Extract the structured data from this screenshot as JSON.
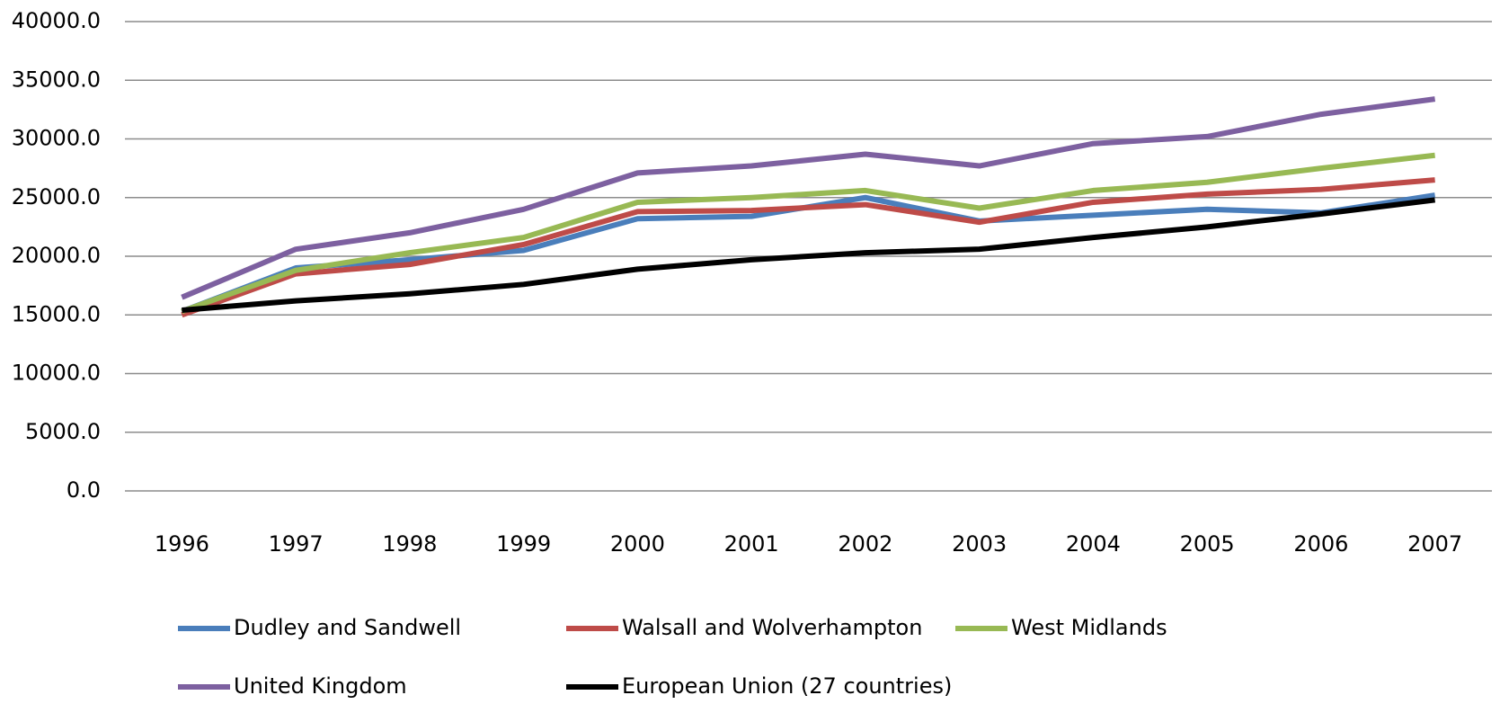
{
  "chart_data": {
    "type": "line",
    "categories": [
      "1996",
      "1997",
      "1998",
      "1999",
      "2000",
      "2001",
      "2002",
      "2003",
      "2004",
      "2005",
      "2006",
      "2007"
    ],
    "series": [
      {
        "name": "Dudley and Sandwell",
        "color": "#4a7ebb",
        "values": [
          15300,
          19000,
          19700,
          20500,
          23200,
          23400,
          25000,
          23000,
          23500,
          24000,
          23700,
          25200
        ]
      },
      {
        "name": "Walsall and Wolverhampton",
        "color": "#be4b48",
        "values": [
          15000,
          18500,
          19300,
          21000,
          23800,
          23900,
          24400,
          22900,
          24600,
          25300,
          25700,
          26500
        ]
      },
      {
        "name": "West Midlands",
        "color": "#98b954",
        "values": [
          15300,
          18800,
          20300,
          21600,
          24600,
          25000,
          25600,
          24100,
          25600,
          26300,
          27500,
          28600
        ]
      },
      {
        "name": "United Kingdom",
        "color": "#7d60a0",
        "values": [
          16500,
          20600,
          22000,
          24000,
          27100,
          27700,
          28700,
          27700,
          29600,
          30200,
          32100,
          33400
        ]
      },
      {
        "name": "European Union (27 countries)",
        "color": "#000000",
        "values": [
          15400,
          16200,
          16800,
          17600,
          18900,
          19700,
          20300,
          20600,
          21600,
          22500,
          23600,
          24800
        ]
      }
    ],
    "ylim": [
      0,
      40000
    ],
    "yticks": [
      {
        "value": 0,
        "label": "0.0"
      },
      {
        "value": 5000,
        "label": "5000.0"
      },
      {
        "value": 10000,
        "label": "10000.0"
      },
      {
        "value": 15000,
        "label": "15000.0"
      },
      {
        "value": 20000,
        "label": "20000.0"
      },
      {
        "value": 25000,
        "label": "25000.0"
      },
      {
        "value": 30000,
        "label": "30000.0"
      },
      {
        "value": 35000,
        "label": "35000.0"
      },
      {
        "value": 40000,
        "label": "40000.0"
      }
    ],
    "grid": true
  }
}
